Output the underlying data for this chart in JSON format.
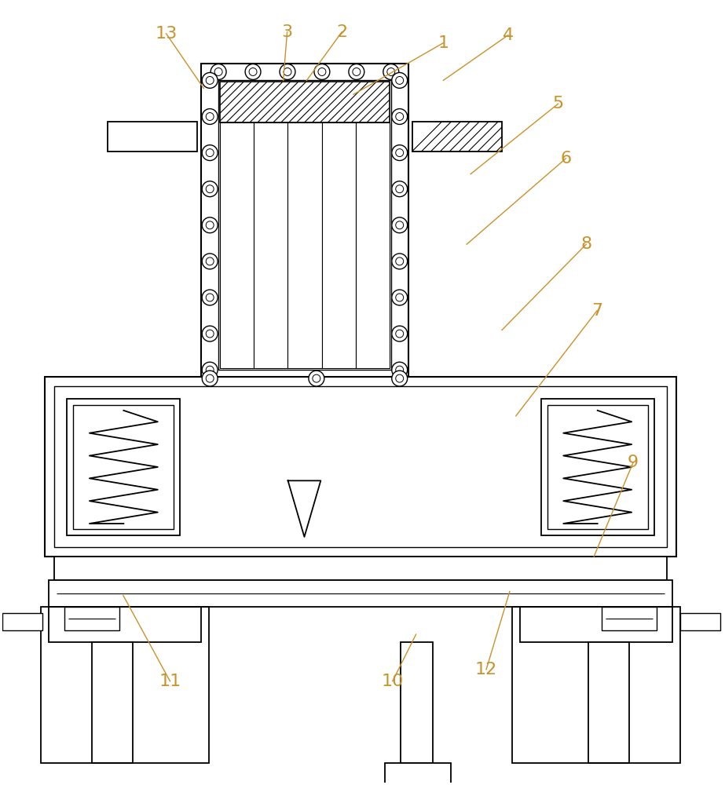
{
  "bg_color": "#ffffff",
  "line_color": "#000000",
  "label_color": "#c8922a",
  "fig_width": 9.23,
  "fig_height": 10.0
}
